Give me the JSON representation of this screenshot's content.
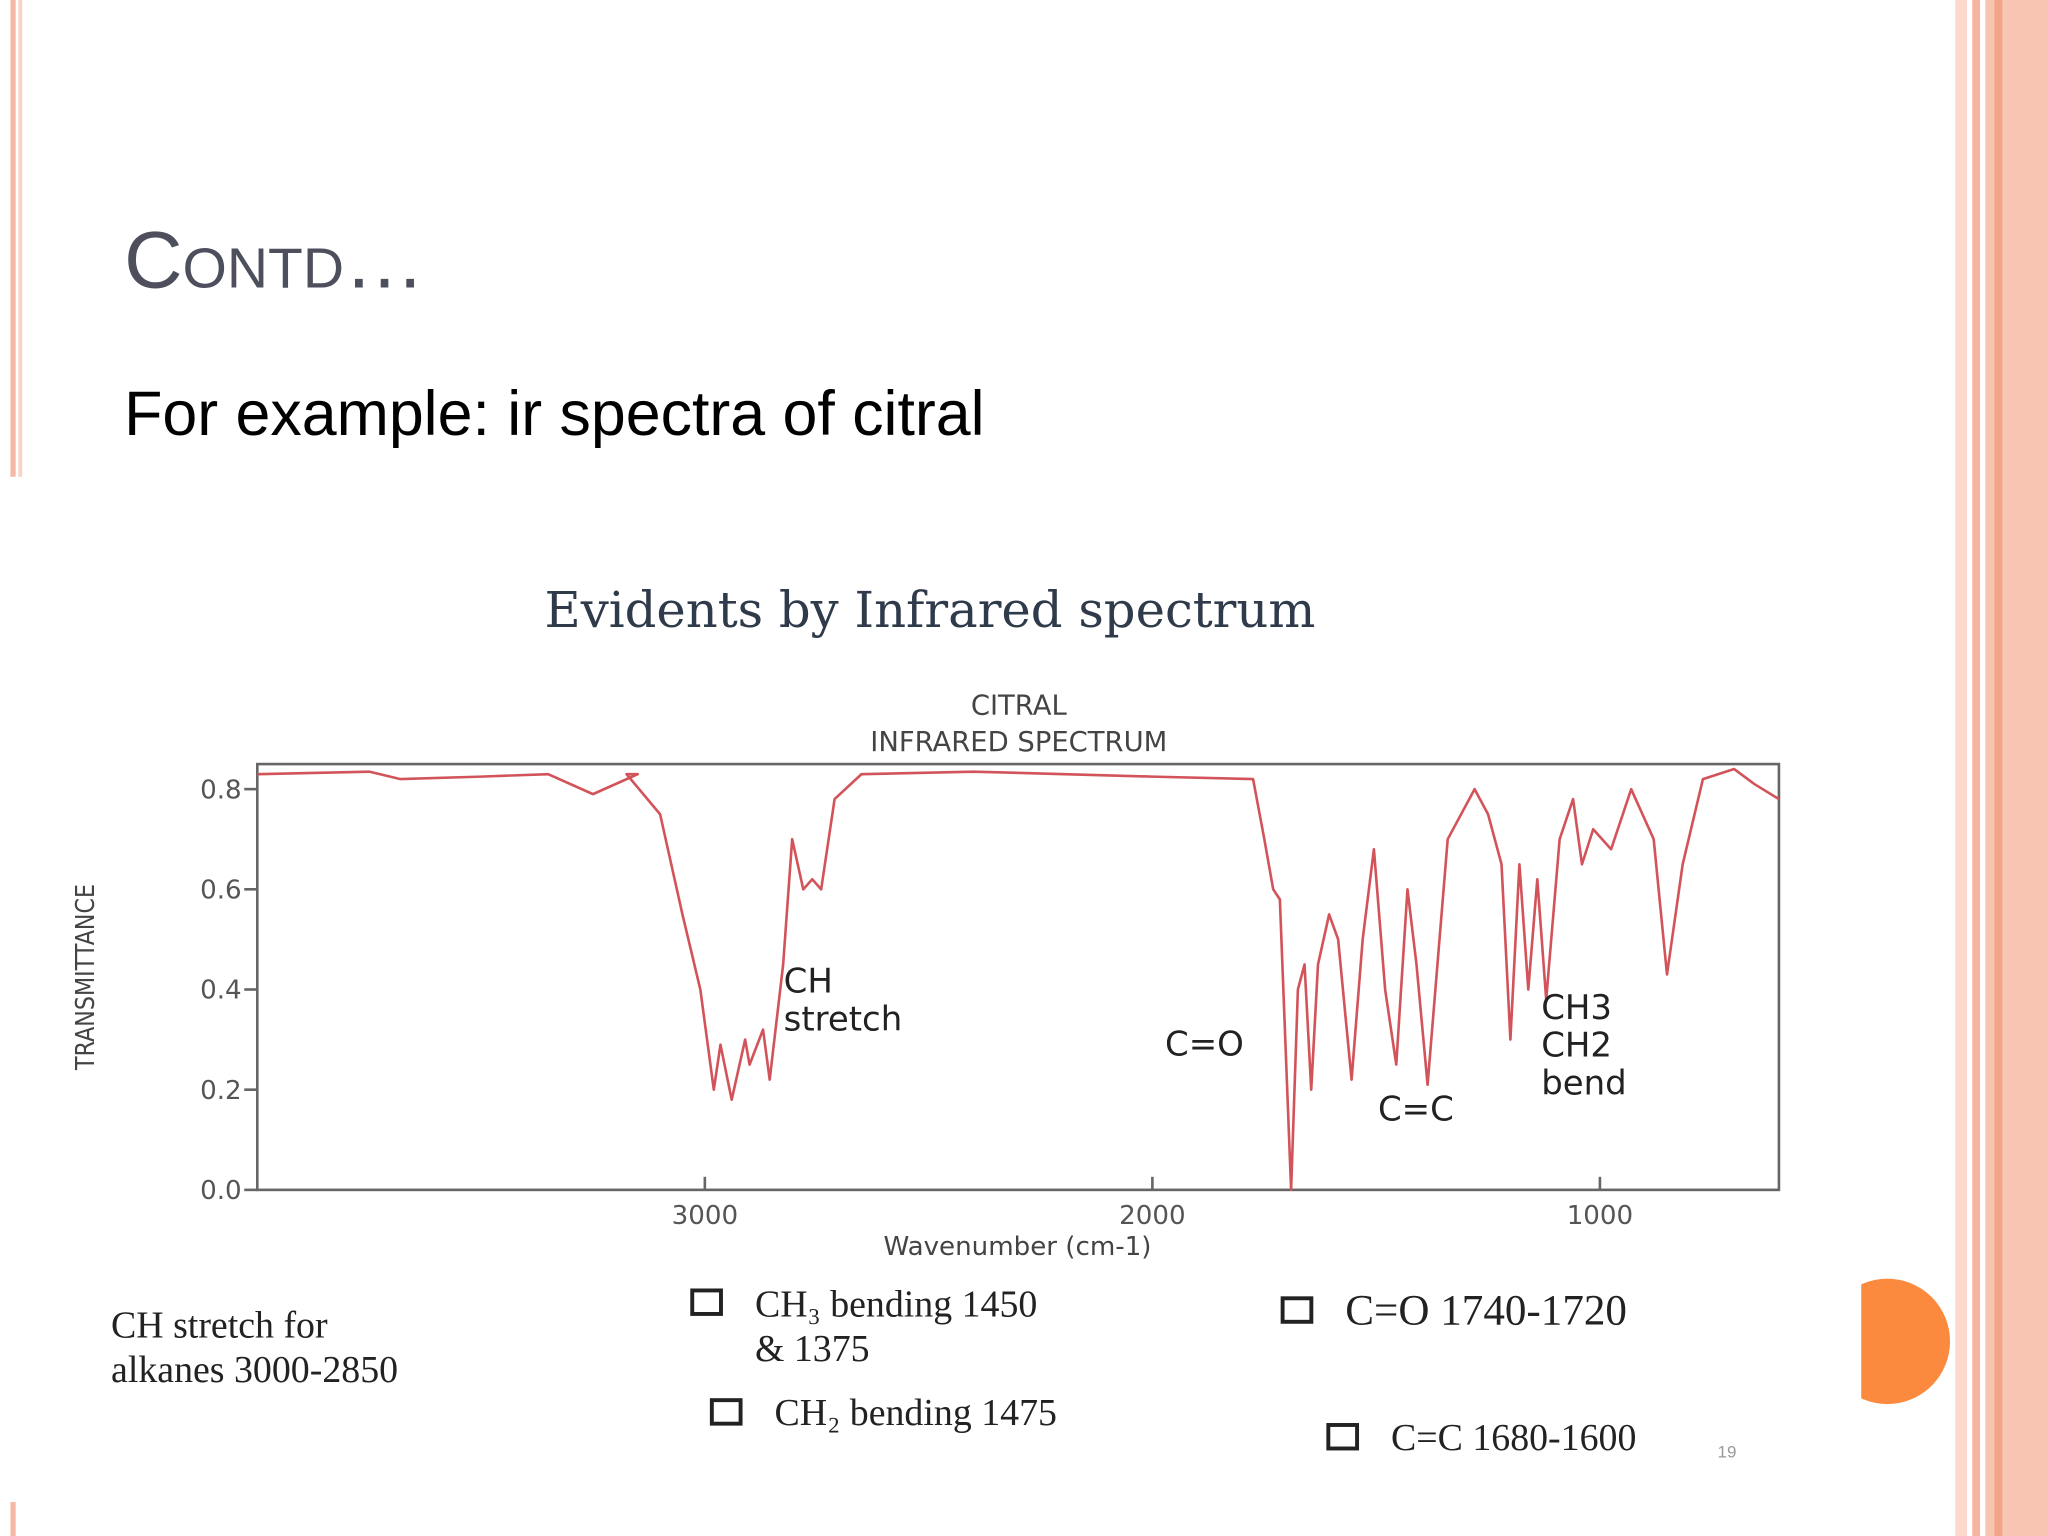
{
  "slide": {
    "title": "Contd…",
    "subtitle": "For example: ir spectra of citral",
    "page_number": "19"
  },
  "chart_data": {
    "type": "line",
    "header": "Evidents by Infrared spectrum",
    "title_lines": [
      "CITRAL",
      "INFRARED SPECTRUM"
    ],
    "xlabel": "Wavenumber (cm-1)",
    "ylabel": "TRANSMITTANCE",
    "x": [
      4000,
      3750,
      3680,
      3500,
      3350,
      3250,
      3150,
      3175,
      3100,
      3050,
      3010,
      2980,
      2965,
      2940,
      2910,
      2900,
      2870,
      2855,
      2825,
      2805,
      2780,
      2760,
      2740,
      2710,
      2650,
      2400,
      2000,
      1775,
      1750,
      1730,
      1715,
      1690,
      1675,
      1660,
      1645,
      1630,
      1605,
      1585,
      1555,
      1530,
      1505,
      1480,
      1455,
      1430,
      1410,
      1385,
      1340,
      1280,
      1250,
      1220,
      1200,
      1180,
      1160,
      1140,
      1120,
      1090,
      1060,
      1040,
      1015,
      975,
      930,
      880,
      850,
      815,
      770,
      700,
      655,
      600
    ],
    "series": [
      {
        "name": "CITRAL",
        "color": "#d2545a",
        "values": [
          0.83,
          0.835,
          0.82,
          0.825,
          0.83,
          0.79,
          0.83,
          0.83,
          0.75,
          0.55,
          0.4,
          0.2,
          0.29,
          0.18,
          0.3,
          0.25,
          0.32,
          0.22,
          0.45,
          0.7,
          0.6,
          0.62,
          0.6,
          0.78,
          0.83,
          0.835,
          0.825,
          0.82,
          0.7,
          0.6,
          0.58,
          0.0,
          0.4,
          0.45,
          0.2,
          0.45,
          0.55,
          0.5,
          0.22,
          0.5,
          0.68,
          0.4,
          0.25,
          0.6,
          0.45,
          0.21,
          0.7,
          0.8,
          0.75,
          0.65,
          0.3,
          0.65,
          0.4,
          0.62,
          0.38,
          0.7,
          0.78,
          0.65,
          0.72,
          0.68,
          0.8,
          0.7,
          0.43,
          0.65,
          0.82,
          0.84,
          0.81,
          0.78
        ]
      }
    ],
    "xlim": [
      4000,
      600
    ],
    "ylim": [
      0,
      0.85
    ],
    "xticks": [
      3000,
      2000,
      1000
    ],
    "yticks": [
      {
        "value": 0,
        "label": "0.0"
      },
      0.2,
      0.4,
      0.6,
      0.8
    ],
    "annotations": [
      [
        "CH",
        "stretch"
      ],
      [
        "C=O"
      ],
      [
        "C=C"
      ],
      [
        "CH3",
        "CH2",
        "bend"
      ]
    ]
  },
  "notes": [
    [
      "CH stretch for",
      "alkanes  3000-2850"
    ],
    [
      "CH₃  bending 1450",
      "& 1375"
    ],
    [
      "CH₂ bending 1475"
    ],
    [
      "C=O 1740-1720"
    ],
    [
      "C=C 1680-1600"
    ]
  ]
}
